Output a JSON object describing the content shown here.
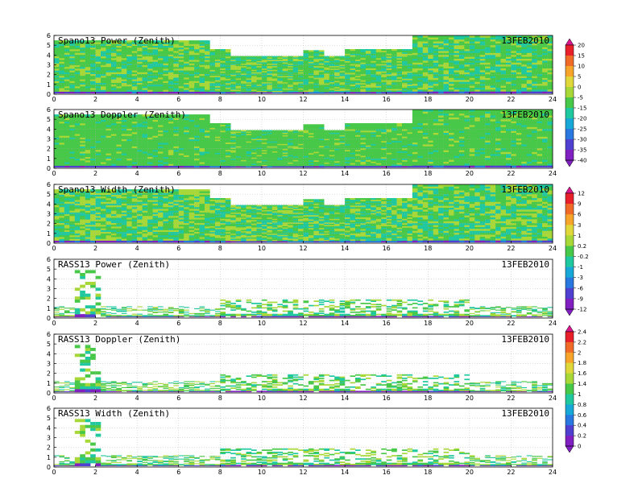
{
  "chart_data": {
    "type": "heatmap",
    "panels": [
      {
        "title": "Spano13 Power (Zenith)",
        "date": "13FEB2010",
        "colorbar_group": 0,
        "kind": "wind",
        "mean": 0,
        "variability": 1
      },
      {
        "title": "Spano13 Doppler (Zenith)",
        "date": "13FEB2010",
        "colorbar_group": 0,
        "kind": "wind",
        "mean": -0.05,
        "variability": 0.6
      },
      {
        "title": "Spano13 Width (Zenith)",
        "date": "13FEB2010",
        "colorbar_group": 1,
        "kind": "wind",
        "mean": 0.05,
        "variability": 1.4
      },
      {
        "title": "RASS13 Power (Zenith)",
        "date": "13FEB2010",
        "colorbar_group": 1,
        "kind": "rass",
        "mean": -0.4,
        "variability": 1
      },
      {
        "title": "RASS13 Doppler (Zenith)",
        "date": "13FEB2010",
        "colorbar_group": 2,
        "kind": "rass",
        "mean": 0,
        "variability": 0.8
      },
      {
        "title": "RASS13 Width (Zenith)",
        "date": "13FEB2010",
        "colorbar_group": 2,
        "kind": "rass",
        "mean": 0,
        "variability": 0.9
      }
    ],
    "x_ticks": [
      "0",
      "2",
      "4",
      "6",
      "8",
      "10",
      "12",
      "14",
      "16",
      "18",
      "20",
      "22",
      "24"
    ],
    "y_ticks": [
      "0",
      "1",
      "2",
      "3",
      "4",
      "5",
      "6"
    ],
    "xlim": [
      0,
      24
    ],
    "ylim": [
      0,
      6
    ],
    "grid": true,
    "colorbars": [
      {
        "labels": [
          "20",
          "15",
          "10",
          "5",
          "0",
          "-5",
          "-15",
          "-20",
          "-25",
          "-30",
          "-35",
          "-40"
        ]
      },
      {
        "labels": [
          "12",
          "9",
          "6",
          "3",
          "1",
          "0.2",
          "-0.2",
          "-1",
          "-3",
          "-6",
          "-9",
          "-12"
        ]
      },
      {
        "labels": [
          "2.4",
          "2.2",
          "2",
          "1.8",
          "1.6",
          "1.4",
          "1",
          "0.8",
          "0.6",
          "0.4",
          "0.2",
          "0"
        ]
      }
    ],
    "palette": [
      "#d8188c",
      "#e8202a",
      "#f06a28",
      "#f6a42a",
      "#e0d83a",
      "#a8d838",
      "#48c848",
      "#20c8a0",
      "#18a8d8",
      "#2878e0",
      "#5040d0",
      "#8020c0"
    ]
  }
}
